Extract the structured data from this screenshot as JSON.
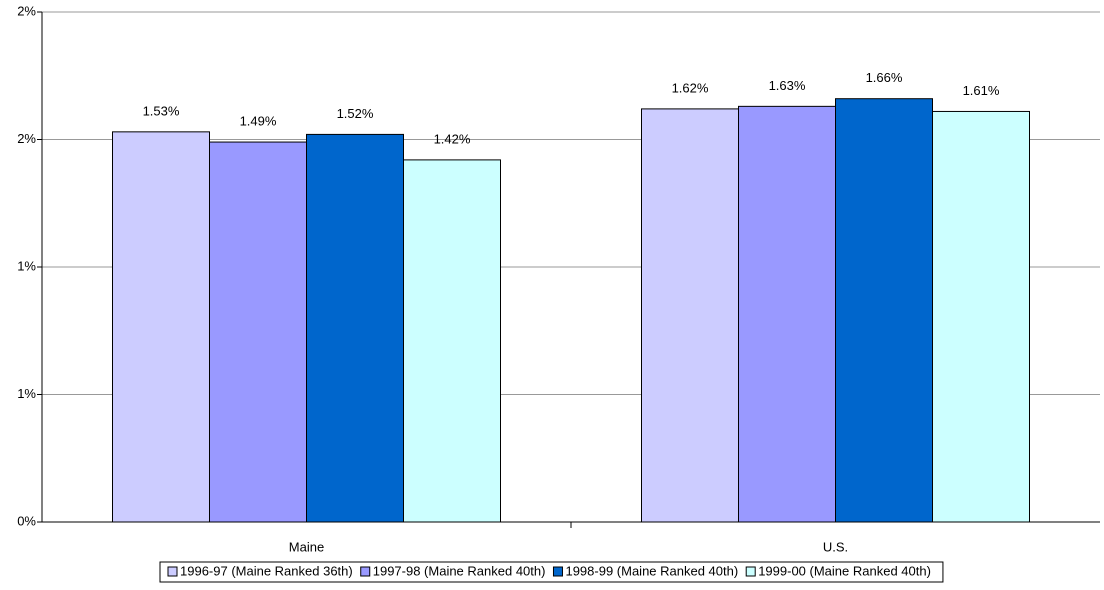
{
  "chart_data": {
    "type": "bar",
    "categories": [
      "Maine",
      "U.S."
    ],
    "series": [
      {
        "name": "1996-97 (Maine Ranked 36th)",
        "color": "#ccccff",
        "values": [
          1.53,
          1.62
        ],
        "value_labels": [
          "1.53%",
          "1.62%"
        ]
      },
      {
        "name": "1997-98 (Maine Ranked 40th)",
        "color": "#9999ff",
        "values": [
          1.49,
          1.63
        ],
        "value_labels": [
          "1.49%",
          "1.63%"
        ]
      },
      {
        "name": "1998-99 (Maine Ranked 40th)",
        "color": "#0066cc",
        "values": [
          1.52,
          1.66
        ],
        "value_labels": [
          "1.52%",
          "1.66%"
        ]
      },
      {
        "name": "1999-00 (Maine Ranked 40th)",
        "color": "#ccffff",
        "values": [
          1.42,
          1.61
        ],
        "value_labels": [
          "1.42%",
          "1.61%"
        ]
      }
    ],
    "ylim": [
      0,
      2
    ],
    "yticks": [
      {
        "value": 0,
        "label": "0%"
      },
      {
        "value": 0.5,
        "label": "1%"
      },
      {
        "value": 1,
        "label": "1%"
      },
      {
        "value": 1.5,
        "label": "2%"
      },
      {
        "value": 2,
        "label": "2%"
      }
    ],
    "grid": true,
    "legend": "bottom"
  }
}
